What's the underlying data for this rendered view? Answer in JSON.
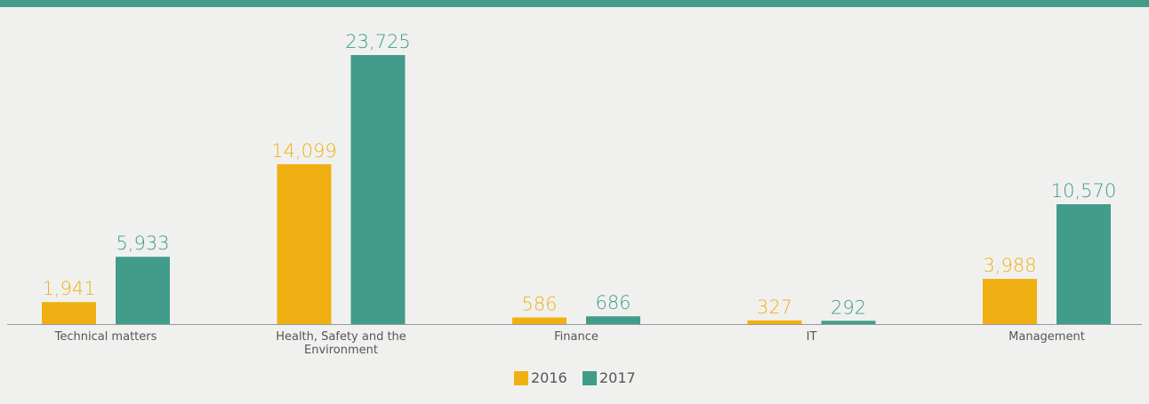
{
  "chart_data": {
    "type": "bar",
    "categories": [
      "Technical matters",
      "Health, Safety and the Environment",
      "Finance",
      "IT",
      "Management"
    ],
    "series": [
      {
        "name": "2016",
        "color": "#f0b013",
        "values": [
          1941,
          14099,
          586,
          327,
          3988
        ],
        "value_labels": [
          "1,941",
          "14,099",
          "586",
          "327",
          "3,988"
        ]
      },
      {
        "name": "2017",
        "color": "#429c8a",
        "values": [
          5933,
          23725,
          686,
          292,
          10570
        ],
        "value_labels": [
          "5,933",
          "23,725",
          "686",
          "292",
          "10,570"
        ]
      }
    ]
  }
}
